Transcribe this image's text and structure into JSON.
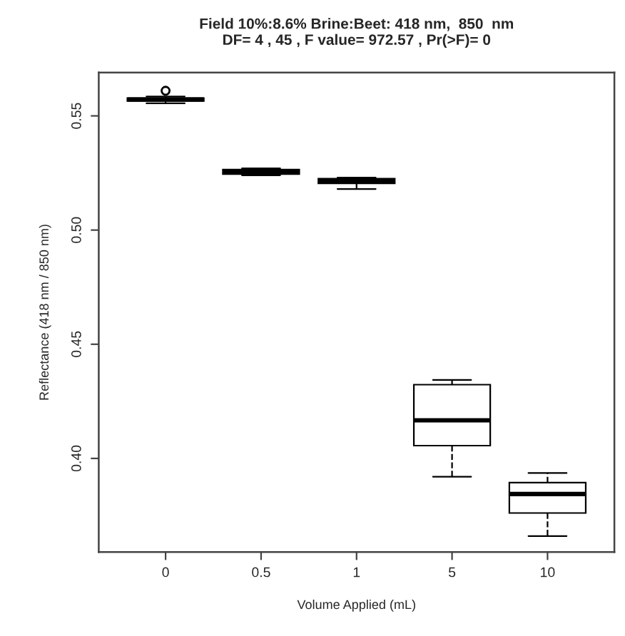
{
  "chart_data": {
    "type": "box",
    "title": "Field 10%:8.6% Brine:Beet: 418 nm,  850  nm\nDF= 4 , 45 , F value= 972.57 , Pr(>F)= 0",
    "xlabel": "Volume Applied (mL)",
    "ylabel": "Reflectance (418 nm / 850 nm)",
    "categories": [
      "0",
      "0.5",
      "1",
      "5",
      "10"
    ],
    "boxes": [
      {
        "low": 0.5555,
        "q1": 0.5565,
        "median": 0.5572,
        "q3": 0.5578,
        "high": 0.5585,
        "outliers": [
          0.561
        ]
      },
      {
        "low": 0.524,
        "q1": 0.5245,
        "median": 0.5255,
        "q3": 0.5265,
        "high": 0.527
      },
      {
        "low": 0.518,
        "q1": 0.5205,
        "median": 0.5215,
        "q3": 0.5225,
        "high": 0.523
      },
      {
        "low": 0.392,
        "q1": 0.4056,
        "median": 0.4167,
        "q3": 0.4323,
        "high": 0.4344
      },
      {
        "low": 0.366,
        "q1": 0.3761,
        "median": 0.3844,
        "q3": 0.3894,
        "high": 0.3936
      }
    ],
    "ylim": [
      0.359,
      0.569
    ],
    "yticks": [
      {
        "value": 0.4,
        "label": "0.40"
      },
      {
        "value": 0.45,
        "label": "0.45"
      },
      {
        "value": 0.5,
        "label": "0.50"
      },
      {
        "value": 0.55,
        "label": "0.55"
      }
    ],
    "color": "#ffffff"
  }
}
